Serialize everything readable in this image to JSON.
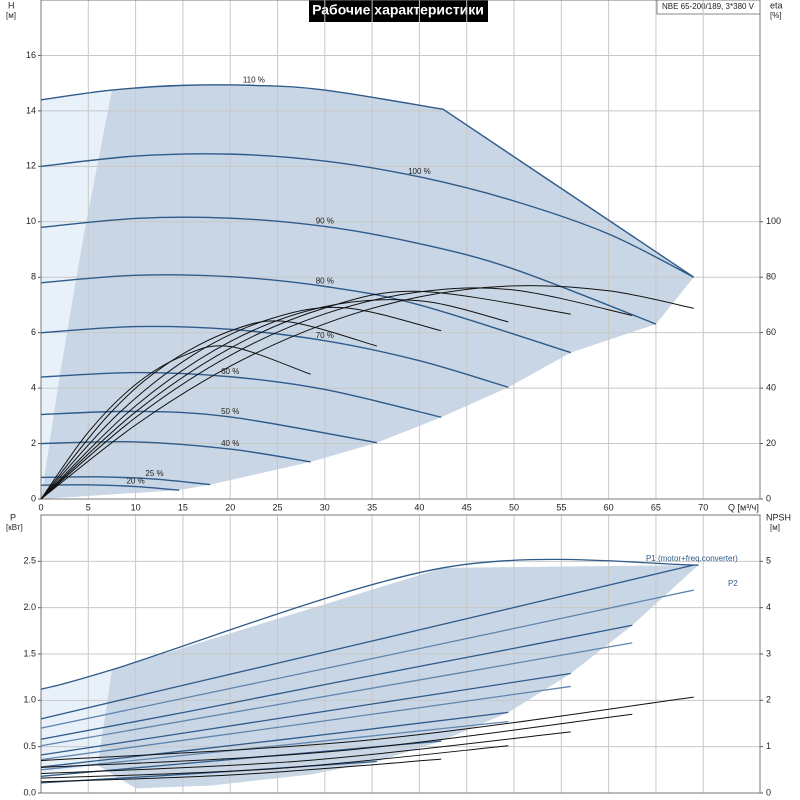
{
  "chart_data": [
    {
      "type": "line",
      "title": "Рабочие характеристики",
      "annotation": "NBE 65-200/189, 3*380 V",
      "ylabel": "H",
      "yunit": "[м]",
      "y2label": "eta",
      "y2unit": "[%]",
      "xlabel": "Q [м³/ч]",
      "xlim": [
        0,
        76
      ],
      "xticks": [
        0,
        5,
        10,
        15,
        20,
        25,
        30,
        35,
        40,
        45,
        50,
        55,
        60,
        65,
        70
      ],
      "ylim": [
        0,
        18
      ],
      "yticks": [
        0,
        2,
        4,
        6,
        8,
        10,
        12,
        14,
        16
      ],
      "y2lim": [
        0,
        180
      ],
      "y2ticks": [
        0,
        20,
        40,
        60,
        80,
        100
      ],
      "grid": true,
      "areas": [
        {
          "color": "#e8f0f9",
          "x": [
            0,
            7.5,
            4.5,
            2,
            0
          ],
          "values": [
            14.4,
            14.75,
            9.5,
            4.5,
            0
          ]
        },
        {
          "color": "#c9d6e5",
          "x": [
            0,
            2,
            4.5,
            7.5,
            15,
            22.5,
            30,
            42.5,
            69,
            65,
            56,
            49.4,
            42.3,
            35.5,
            28.5,
            17.9,
            14.6
          ],
          "values": [
            0,
            4.5,
            9.5,
            14.75,
            14.92,
            14.92,
            14.75,
            14.06,
            8.0,
            6.31,
            5.28,
            4.03,
            2.95,
            2.03,
            1.34,
            0.52,
            0.32
          ]
        }
      ],
      "series": [
        {
          "name": "110 %",
          "color": "#2e5b8a",
          "x": [
            0,
            7.5,
            15,
            22.5,
            30,
            42.5
          ],
          "values": [
            14.4,
            14.75,
            14.92,
            14.92,
            14.75,
            14.06
          ]
        },
        {
          "color": "#2e5b8a",
          "x": [
            42.5,
            69
          ],
          "values": [
            14.06,
            8.0
          ]
        },
        {
          "name": "100 %",
          "color": "#2e5b8a",
          "x": [
            0,
            10,
            20,
            30,
            40,
            50,
            60,
            69
          ],
          "values": [
            12.0,
            12.37,
            12.44,
            12.19,
            11.62,
            10.75,
            9.56,
            8.0
          ]
        },
        {
          "name": "90 %",
          "color": "#2e5b8a",
          "x": [
            0,
            10,
            20,
            30,
            40,
            50,
            65
          ],
          "values": [
            9.8,
            10.12,
            10.13,
            9.83,
            9.21,
            8.29,
            6.31
          ]
        },
        {
          "name": "80 %",
          "color": "#2e5b8a",
          "x": [
            0,
            10,
            20,
            30,
            40,
            56
          ],
          "values": [
            7.8,
            8.07,
            8.02,
            7.67,
            7.0,
            5.28
          ]
        },
        {
          "name": "70 %",
          "color": "#2e5b8a",
          "x": [
            0,
            10,
            20,
            30,
            40,
            49.4
          ],
          "values": [
            6.0,
            6.22,
            6.12,
            5.71,
            4.99,
            4.03
          ]
        },
        {
          "name": "60 %",
          "color": "#2e5b8a",
          "x": [
            0,
            10,
            20,
            30,
            42.3
          ],
          "values": [
            4.4,
            4.56,
            4.41,
            3.95,
            2.95
          ]
        },
        {
          "name": "50 %",
          "color": "#2e5b8a",
          "x": [
            0,
            10,
            20,
            35.5
          ],
          "values": [
            3.05,
            3.16,
            2.96,
            2.03
          ]
        },
        {
          "name": "40 %",
          "color": "#2e5b8a",
          "x": [
            0,
            10,
            20,
            28.5
          ],
          "values": [
            2.0,
            2.06,
            1.8,
            1.34
          ]
        },
        {
          "name": "25 %",
          "color": "#2e5b8a",
          "x": [
            0,
            6,
            12,
            17.9
          ],
          "values": [
            0.78,
            0.8,
            0.72,
            0.52
          ]
        },
        {
          "name": "20 %",
          "color": "#2e5b8a",
          "x": [
            0,
            5,
            10,
            14.6
          ],
          "values": [
            0.5,
            0.51,
            0.45,
            0.32
          ]
        },
        {
          "color": "#111111",
          "axis": "y2",
          "x": [
            0,
            10,
            20,
            30,
            40,
            50,
            60,
            69
          ],
          "values": [
            0,
            26.7,
            47.9,
            63.2,
            72.9,
            76.9,
            75.1,
            68.8
          ]
        },
        {
          "color": "#111111",
          "axis": "y2",
          "x": [
            0,
            10,
            20,
            30,
            40,
            50,
            62.5
          ],
          "values": [
            0,
            29.4,
            51.8,
            66.8,
            74.7,
            75.4,
            66.2
          ]
        },
        {
          "color": "#111111",
          "axis": "y2",
          "x": [
            0,
            10,
            20,
            30,
            40,
            56
          ],
          "values": [
            0,
            31.4,
            54.4,
            68.9,
            74.9,
            66.7
          ]
        },
        {
          "color": "#111111",
          "axis": "y2",
          "x": [
            0,
            10,
            20,
            30,
            40,
            49.4
          ],
          "values": [
            0,
            33.6,
            56.8,
            69.4,
            71.5,
            63.9
          ]
        },
        {
          "color": "#111111",
          "axis": "y2",
          "x": [
            0,
            8,
            16,
            24,
            32,
            42.3
          ],
          "values": [
            0,
            30.2,
            51.8,
            64.7,
            69,
            60.7
          ]
        },
        {
          "color": "#111111",
          "axis": "y2",
          "x": [
            0,
            7,
            13,
            20,
            26,
            35.5
          ],
          "values": [
            0,
            29.8,
            48,
            60.6,
            64,
            55.2
          ]
        },
        {
          "color": "#111111",
          "axis": "y2",
          "x": [
            0,
            5,
            10,
            15,
            20,
            28.5
          ],
          "values": [
            0,
            24.1,
            41.3,
            51.6,
            55,
            45.0
          ]
        }
      ]
    },
    {
      "type": "line",
      "ylabel": "P",
      "yunit": "[кВт]",
      "y2label": "NPSH",
      "y2unit": "[м]",
      "xlim": [
        0,
        76
      ],
      "xticks": [
        0,
        5,
        10,
        15,
        20,
        25,
        30,
        35,
        40,
        45,
        50,
        55,
        60,
        65,
        70
      ],
      "xtick_labels": false,
      "ylim": [
        0,
        3
      ],
      "yticks": [
        {
          "value": 0,
          "label": "0.0"
        },
        0.5,
        {
          "value": 1,
          "label": "1.0"
        },
        1.5,
        {
          "value": 2,
          "label": "2.0"
        },
        2.5
      ],
      "y2lim": [
        0,
        6
      ],
      "y2ticks": [
        0,
        1,
        2,
        3,
        4,
        5
      ],
      "grid": true,
      "areas": [
        {
          "color": "#e8f0f9",
          "x": [
            0,
            7.5,
            6,
            0
          ],
          "values": [
            1.12,
            1.33,
            0.3,
            0.2
          ]
        },
        {
          "color": "#c9d6e5",
          "x": [
            6,
            7.5,
            42.5,
            69.5,
            62.5,
            56,
            49.4,
            42.3,
            35.5,
            28.5,
            17.9,
            10
          ],
          "values": [
            0.3,
            1.33,
            2.43,
            2.46,
            1.81,
            1.29,
            0.87,
            0.56,
            0.34,
            0.2,
            0.08,
            0.05
          ]
        }
      ],
      "series": [
        {
          "color": "#2e5b8a",
          "x": [
            0,
            7.5,
            42.5,
            69.5
          ],
          "values": [
            1.12,
            1.33,
            2.43,
            2.46
          ]
        },
        {
          "name": "P1 (motor+freq.converter)",
          "color": "#2e5b8a",
          "x": [
            0,
            17,
            35,
            52,
            69
          ],
          "values": [
            0.8,
            1.21,
            1.64,
            2.05,
            2.46
          ]
        },
        {
          "color": "#2e5b8a",
          "x": [
            0,
            15.6,
            31,
            46.9,
            62.5
          ],
          "values": [
            0.58,
            0.88,
            1.19,
            1.5,
            1.81
          ]
        },
        {
          "color": "#2e5b8a",
          "x": [
            0,
            28,
            56
          ],
          "values": [
            0.41,
            0.85,
            1.29
          ]
        },
        {
          "color": "#2e5b8a",
          "x": [
            0,
            25,
            49.4
          ],
          "values": [
            0.28,
            0.57,
            0.87
          ]
        },
        {
          "color": "#2e5b8a",
          "x": [
            0,
            21,
            42.3
          ],
          "values": [
            0.18,
            0.37,
            0.56
          ]
        },
        {
          "color": "#2e5b8a",
          "x": [
            0,
            18,
            35.5
          ],
          "values": [
            0.11,
            0.22,
            0.34
          ]
        },
        {
          "name": "P2",
          "color": "#5f85ad",
          "x": [
            0,
            35,
            69
          ],
          "values": [
            0.7,
            1.45,
            2.19
          ]
        },
        {
          "color": "#5f85ad",
          "x": [
            0,
            31,
            62.5
          ],
          "values": [
            0.51,
            1.06,
            1.62
          ]
        },
        {
          "color": "#5f85ad",
          "x": [
            0,
            28,
            56
          ],
          "values": [
            0.36,
            0.75,
            1.15
          ]
        },
        {
          "color": "#5f85ad",
          "x": [
            0,
            25,
            49.4
          ],
          "values": [
            0.25,
            0.51,
            0.77
          ]
        },
        {
          "color": "#111111",
          "axis": "y2",
          "x": [
            0,
            35,
            69
          ],
          "values": [
            0.7,
            1.15,
            2.07
          ]
        },
        {
          "color": "#111111",
          "axis": "y2",
          "x": [
            0,
            31,
            62.5
          ],
          "values": [
            0.55,
            0.9,
            1.7
          ]
        },
        {
          "color": "#111111",
          "axis": "y2",
          "x": [
            0,
            28,
            56
          ],
          "values": [
            0.42,
            0.7,
            1.32
          ]
        },
        {
          "color": "#111111",
          "axis": "y2",
          "x": [
            0,
            25,
            49.4
          ],
          "values": [
            0.32,
            0.53,
            1.02
          ]
        },
        {
          "color": "#111111",
          "axis": "y2",
          "x": [
            0,
            21,
            42.3
          ],
          "values": [
            0.24,
            0.4,
            0.73
          ]
        }
      ]
    }
  ]
}
